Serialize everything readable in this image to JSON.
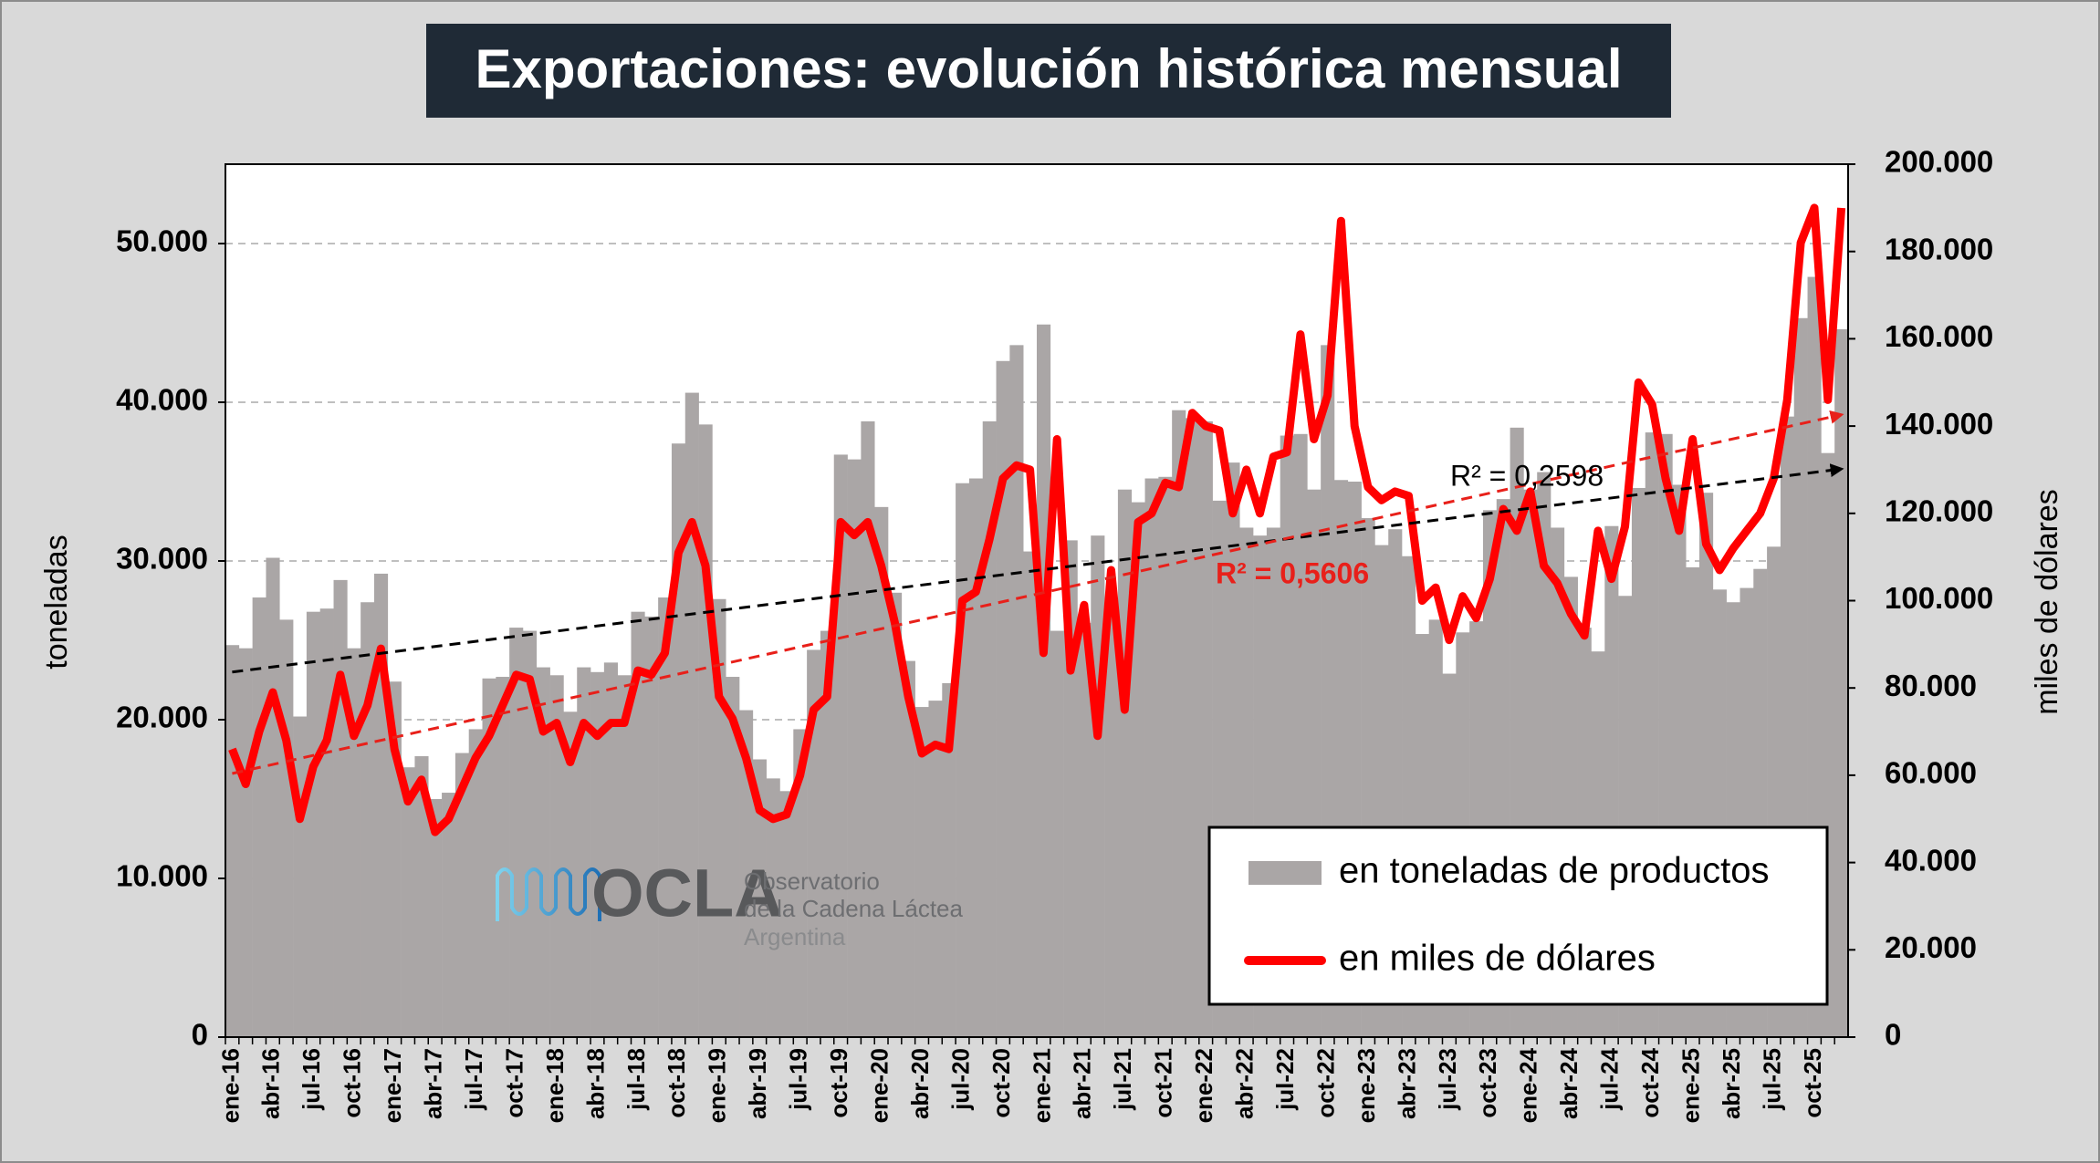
{
  "chart_data": {
    "type": "bar",
    "title": "Exportaciones: evolución histórica mensual",
    "y_label": "toneladas",
    "y2_label": "miles de dólares",
    "categories": [
      "ene-16",
      null,
      null,
      "abr-16",
      null,
      null,
      "jul-16",
      null,
      null,
      "oct-16",
      null,
      null,
      "ene-17",
      null,
      null,
      "abr-17",
      null,
      null,
      "jul-17",
      null,
      null,
      "oct-17",
      null,
      null,
      "ene-18",
      null,
      null,
      "abr-18",
      null,
      null,
      "jul-18",
      null,
      null,
      "oct-18",
      null,
      null,
      "ene-19",
      null,
      null,
      "abr-19",
      null,
      null,
      "jul-19",
      null,
      null,
      "oct-19",
      null,
      null,
      "ene-20",
      null,
      null,
      "abr-20",
      null,
      null,
      "jul-20",
      null,
      null,
      "oct-20",
      null,
      null,
      "ene-21",
      null,
      null,
      "abr-21",
      null,
      null,
      "jul-21",
      null,
      null,
      "oct-21",
      null,
      null,
      "ene-22",
      null,
      null,
      "abr-22",
      null,
      null,
      "jul-22",
      null,
      null,
      "oct-22",
      null,
      null,
      "ene-23",
      null,
      null,
      "abr-23",
      null,
      null,
      "jul-23",
      null,
      null,
      "oct-23",
      null,
      null,
      "ene-24",
      null,
      null,
      "abr-24",
      null,
      null,
      "jul-24",
      null,
      null,
      "oct-24",
      null,
      null,
      "ene-25",
      null,
      null,
      "abr-25",
      null,
      null,
      "jul-25",
      null,
      null,
      "oct-25",
      null,
      null
    ],
    "series": [
      {
        "name": "en toneladas de productos",
        "type": "bar",
        "axis": "y",
        "color": "#aaa6a6",
        "values": [
          24700,
          24500,
          27700,
          30200,
          26300,
          20200,
          26800,
          27000,
          28800,
          24500,
          27400,
          29200,
          22400,
          17000,
          17700,
          15000,
          15400,
          17900,
          19400,
          22600,
          22700,
          25800,
          25600,
          23300,
          22800,
          20500,
          23300,
          23000,
          23600,
          22800,
          26800,
          26500,
          27700,
          37400,
          40600,
          38600,
          27600,
          22700,
          20600,
          17500,
          16300,
          15500,
          19400,
          24400,
          25600,
          36700,
          36400,
          38800,
          33400,
          28000,
          23700,
          20800,
          21200,
          22300,
          34900,
          35200,
          38800,
          42600,
          43600,
          30600,
          44900,
          25600,
          31300,
          26100,
          31600,
          27000,
          34500,
          33700,
          35200,
          35300,
          39500,
          39000,
          38800,
          33800,
          36200,
          32100,
          31600,
          32100,
          37900,
          38000,
          34500,
          43600,
          35100,
          35000,
          32700,
          31000,
          32000,
          30300,
          25400,
          26300,
          22900,
          25500,
          26200,
          33200,
          33900,
          38400,
          34500,
          35600,
          32100,
          29000,
          25800,
          24300,
          32200,
          27800,
          34600,
          38100,
          38000,
          34800,
          29600,
          34300,
          28200,
          27400,
          28300,
          29500,
          30900,
          39100,
          45300,
          47900,
          36800,
          44600
        ]
      },
      {
        "name": "en miles de dólares",
        "type": "line",
        "axis": "y2",
        "color": "#ff0000",
        "values": [
          66000,
          58000,
          70000,
          79000,
          68000,
          50000,
          62000,
          68000,
          83000,
          69000,
          76000,
          89000,
          66000,
          54000,
          59000,
          47000,
          50000,
          57000,
          64000,
          69000,
          76000,
          83000,
          82000,
          70000,
          72000,
          63000,
          72000,
          69000,
          72000,
          72000,
          84000,
          83000,
          88000,
          111000,
          118000,
          108000,
          78000,
          73000,
          64000,
          52000,
          50000,
          51000,
          60000,
          75000,
          78000,
          118000,
          115000,
          118000,
          108000,
          95000,
          78000,
          65000,
          67000,
          66000,
          100000,
          102000,
          114000,
          128000,
          131000,
          130000,
          88000,
          137000,
          84000,
          99000,
          69000,
          107000,
          75000,
          118000,
          120000,
          127000,
          126000,
          143000,
          140000,
          139000,
          120000,
          130000,
          120000,
          133000,
          134000,
          161000,
          137000,
          147000,
          187000,
          140000,
          126000,
          123000,
          125000,
          124000,
          100000,
          103000,
          91000,
          101000,
          96000,
          105000,
          121000,
          116000,
          125000,
          108000,
          104000,
          97000,
          92000,
          116000,
          105000,
          117000,
          150000,
          145000,
          128000,
          116000,
          137000,
          113000,
          107000,
          112000,
          116000,
          120000,
          128000,
          146000,
          182000,
          190000,
          146000,
          190000
        ]
      }
    ],
    "trendlines": [
      {
        "label": "R² = 0,2598",
        "color": "#000000",
        "axis": "y",
        "start": 23000,
        "end": 35800
      },
      {
        "label": "R² = 0,5606",
        "color": "#e8201a",
        "axis": "y2",
        "start": 60400,
        "end": 142600
      }
    ],
    "ylim": [
      0,
      55000
    ],
    "yticks": [
      0,
      {
        "value": 10000,
        "label": "10.000"
      },
      {
        "value": 20000,
        "label": "20.000"
      },
      {
        "value": 30000,
        "label": "30.000"
      },
      {
        "value": 40000,
        "label": "40.000"
      },
      {
        "value": 50000,
        "label": "50.000"
      }
    ],
    "y2lim": [
      0,
      200000
    ],
    "y2ticks": [
      0,
      {
        "value": 20000,
        "label": "20.000"
      },
      {
        "value": 40000,
        "label": "40.000"
      },
      {
        "value": 60000,
        "label": "60.000"
      },
      {
        "value": 80000,
        "label": "80.000"
      },
      {
        "value": 100000,
        "label": "100.000"
      },
      {
        "value": 120000,
        "label": "120.000"
      },
      {
        "value": 140000,
        "label": "140.000"
      },
      {
        "value": 160000,
        "label": "160.000"
      },
      {
        "value": 180000,
        "label": "180.000"
      },
      {
        "value": 200000,
        "label": "200.000"
      }
    ],
    "grid": true,
    "legend": "lower right",
    "logo": {
      "name": "OCLA",
      "line1": "Observatorio",
      "line2": "de la Cadena Láctea",
      "line3": "Argentina"
    }
  }
}
